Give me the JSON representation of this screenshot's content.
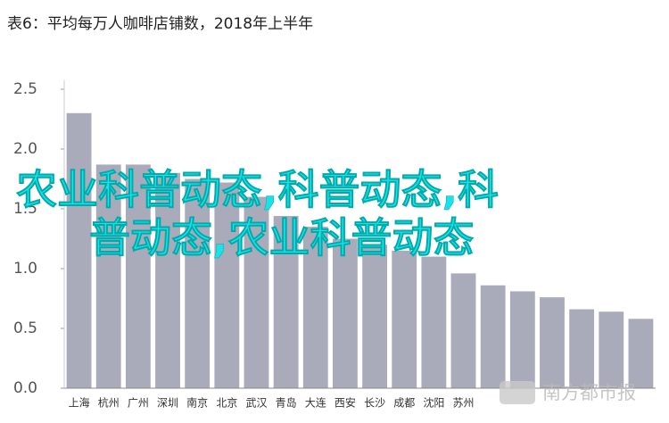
{
  "chart_data": {
    "type": "bar",
    "title": "表6：平均每万人咖啡店铺数，2018年上半年",
    "categories": [
      "上海",
      "杭州",
      "广州",
      "深圳",
      "南京",
      "北京",
      "武汉",
      "青岛",
      "大连",
      "西安",
      "长沙",
      "成都",
      "沈阳",
      "苏州",
      null,
      null,
      null,
      null,
      null,
      null
    ],
    "values": [
      2.3,
      1.87,
      1.87,
      1.8,
      1.75,
      1.72,
      1.6,
      1.44,
      1.35,
      1.25,
      1.2,
      1.15,
      1.1,
      0.96,
      0.86,
      0.81,
      0.76,
      0.66,
      0.64,
      0.58
    ],
    "color": "#a9abbb",
    "ylim": [
      0,
      2.5
    ],
    "yticks": [
      {
        "value": 0,
        "label": "0.0"
      },
      0.5,
      {
        "value": 1,
        "label": "1.0"
      },
      1.5,
      {
        "value": 2,
        "label": "2.0"
      },
      2.5
    ],
    "grid": false,
    "overlay_text": [
      "农业科普动态,科普动态,科",
      "普动态,农业科普动态"
    ],
    "watermark": "南方都市报"
  }
}
